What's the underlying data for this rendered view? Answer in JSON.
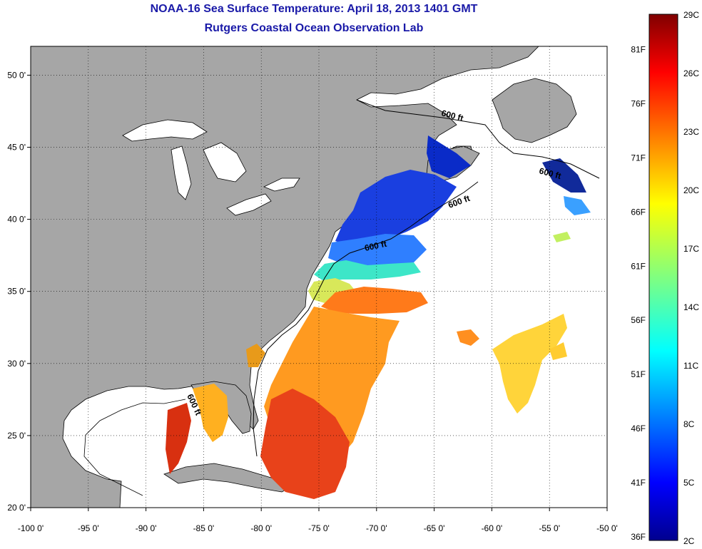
{
  "header": {
    "title": "NOAA-16 Sea Surface Temperature:  April 18, 2013 1401 GMT",
    "subtitle": "Rutgers Coastal Ocean Observation Lab"
  },
  "map": {
    "lon_range": [
      -100,
      -50
    ],
    "lat_range": [
      20,
      52
    ],
    "lon_ticks": [
      "-100 0'",
      "-95 0'",
      "-90 0'",
      "-85 0'",
      "-80 0'",
      "-75 0'",
      "-70 0'",
      "-65 0'",
      "-60 0'",
      "-55 0'",
      "-50 0'"
    ],
    "lat_ticks": [
      "20 0'",
      "25 0'",
      "30 0'",
      "35 0'",
      "40 0'",
      "45 0'",
      "50 0'"
    ],
    "lat_values": [
      20,
      25,
      30,
      35,
      40,
      45,
      50
    ],
    "contour_labels": [
      "600 ft",
      "600 ft",
      "600 ft",
      "600 ft",
      "600 ft"
    ],
    "land_color": "#a6a6a6",
    "ocean_color": "#ffffff"
  },
  "colorbar": {
    "c_labels": [
      "29C",
      "26C",
      "23C",
      "20C",
      "17C",
      "14C",
      "11C",
      "8C",
      "5C",
      "2C"
    ],
    "f_labels": [
      "81F",
      "76F",
      "71F",
      "66F",
      "61F",
      "56F",
      "51F",
      "46F",
      "41F",
      "36F"
    ],
    "min_c": 2,
    "max_c": 29
  }
}
